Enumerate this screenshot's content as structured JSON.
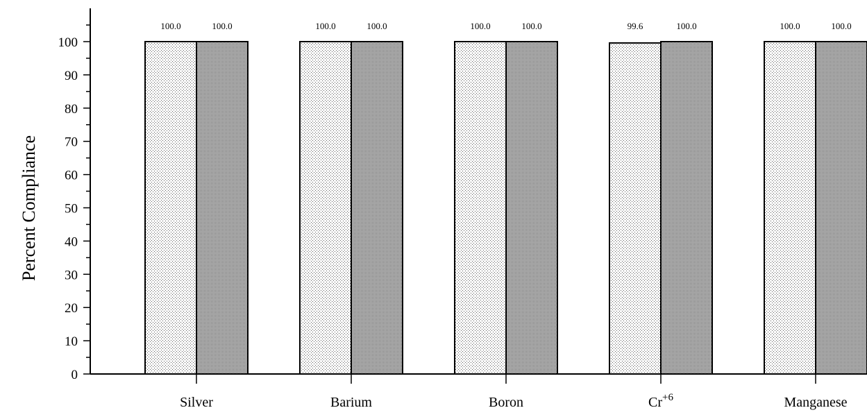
{
  "chart_data": {
    "type": "bar",
    "title": "",
    "xlabel": "",
    "ylabel": "Percent Compliance",
    "ylim": [
      0,
      100
    ],
    "yticks": [
      0,
      10,
      20,
      30,
      40,
      50,
      60,
      70,
      80,
      90,
      100
    ],
    "categories": [
      {
        "label": "Silver"
      },
      {
        "label": "Barium"
      },
      {
        "label": "Boron"
      },
      {
        "label": "Cr",
        "superscript": "+6"
      },
      {
        "label": "Manganese"
      }
    ],
    "series": [
      {
        "values": [
          100.0,
          100.0,
          100.0,
          99.6,
          100.0
        ],
        "labels": [
          "100.0",
          "100.0",
          "100.0",
          "99.6",
          "100.0"
        ],
        "pattern": "light-dots"
      },
      {
        "values": [
          100.0,
          100.0,
          100.0,
          100.0,
          100.0
        ],
        "labels": [
          "100.0",
          "100.0",
          "100.0",
          "100.0",
          "100.0"
        ],
        "pattern": "dense-dots"
      }
    ],
    "grid": false,
    "legend": "none"
  }
}
